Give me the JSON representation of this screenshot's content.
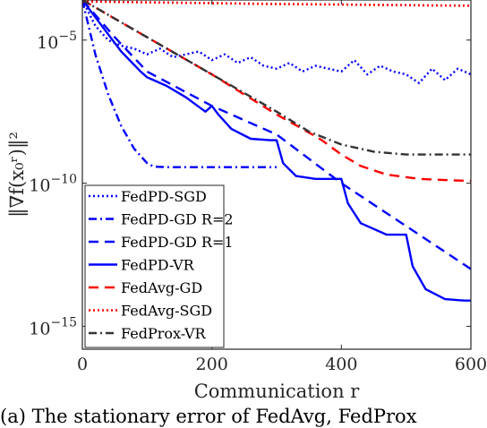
{
  "chart_data": {
    "type": "line",
    "title": "",
    "xlabel": "Communication r",
    "ylabel": "‖∇f(x₀ʳ)‖²",
    "xlim": [
      0,
      600
    ],
    "ylim_log10": [
      -15.8,
      -3.6
    ],
    "yscale": "log",
    "grid": false,
    "legend_position": "bottom-left",
    "x_ticks": [
      {
        "value": 0,
        "label": "0"
      },
      {
        "value": 200,
        "label": "200"
      },
      {
        "value": 400,
        "label": "400"
      },
      {
        "value": 600,
        "label": "600"
      }
    ],
    "y_ticks": [
      {
        "value": -5,
        "label": "10",
        "exp": "−5"
      },
      {
        "value": -10,
        "label": "10",
        "exp": "−10"
      },
      {
        "value": -15,
        "label": "10",
        "exp": "−15"
      }
    ],
    "series": [
      {
        "name": "FedPD-SGD",
        "color": "#0000ff",
        "dash": "2,3",
        "width": 2.4,
        "x": [
          0,
          20,
          40,
          60,
          80,
          100,
          120,
          140,
          160,
          180,
          200,
          220,
          240,
          260,
          280,
          300,
          320,
          340,
          360,
          380,
          400,
          420,
          440,
          460,
          480,
          500,
          520,
          540,
          560,
          580,
          600
        ],
        "y": [
          -3.6,
          -4.5,
          -5.0,
          -5.2,
          -5.3,
          -5.5,
          -5.3,
          -5.6,
          -5.5,
          -5.4,
          -5.7,
          -5.5,
          -5.8,
          -5.6,
          -5.9,
          -6.0,
          -5.8,
          -6.1,
          -5.9,
          -6.0,
          -6.1,
          -5.7,
          -6.2,
          -5.9,
          -6.1,
          -6.2,
          -6.5,
          -6.0,
          -6.4,
          -6.0,
          -6.2
        ]
      },
      {
        "name": "FedPD-GD R=2",
        "color": "#0000ff",
        "dash": "9,4,2,4",
        "width": 2.4,
        "x": [
          0,
          20,
          40,
          60,
          80,
          100,
          110,
          130,
          150,
          200,
          250,
          300
        ],
        "y": [
          -3.6,
          -5.5,
          -6.9,
          -8.0,
          -8.8,
          -9.3,
          -9.42,
          -9.44,
          -9.44,
          -9.44,
          -9.44,
          -9.44
        ]
      },
      {
        "name": "FedPD-GD R=1",
        "color": "#0000ff",
        "dash": "11,7",
        "width": 2.4,
        "x": [
          0,
          50,
          100,
          200,
          300,
          400,
          500,
          600
        ],
        "y": [
          -3.6,
          -4.9,
          -6.1,
          -7.3,
          -8.3,
          -10.0,
          -11.5,
          -13.0
        ]
      },
      {
        "name": "FedPD-VR",
        "color": "#0000ff",
        "dash": "",
        "width": 2.4,
        "x": [
          0,
          30,
          60,
          90,
          100,
          110,
          130,
          160,
          190,
          200,
          210,
          230,
          260,
          290,
          300,
          310,
          330,
          360,
          390,
          400,
          410,
          430,
          470,
          490,
          500,
          510,
          530,
          560,
          590,
          600
        ],
        "y": [
          -3.6,
          -4.5,
          -5.4,
          -6.1,
          -6.3,
          -6.4,
          -6.6,
          -7.0,
          -7.5,
          -7.3,
          -7.6,
          -8.1,
          -8.45,
          -8.5,
          -8.5,
          -9.3,
          -9.75,
          -9.85,
          -9.85,
          -9.85,
          -10.7,
          -11.4,
          -11.8,
          -11.8,
          -11.8,
          -12.9,
          -13.7,
          -14.05,
          -14.1,
          -14.1
        ]
      },
      {
        "name": "FedAvg-GD",
        "color": "#ff0000",
        "dash": "11,7",
        "width": 2.4,
        "x": [
          0,
          100,
          200,
          300,
          340,
          370,
          400,
          430,
          470,
          520,
          570,
          600
        ],
        "y": [
          -3.6,
          -4.9,
          -6.2,
          -7.6,
          -8.1,
          -8.5,
          -9.0,
          -9.4,
          -9.7,
          -9.85,
          -9.9,
          -9.92
        ]
      },
      {
        "name": "FedAvg-SGD",
        "color": "#ff0000",
        "dash": "2,3",
        "width": 2.6,
        "x": [
          0,
          100,
          200,
          300,
          400,
          500,
          600
        ],
        "y": [
          -3.65,
          -3.68,
          -3.71,
          -3.74,
          -3.76,
          -3.78,
          -3.8
        ]
      },
      {
        "name": "FedProx-VR",
        "color": "#333333",
        "dash": "9,4,2,4",
        "width": 2.4,
        "x": [
          0,
          100,
          200,
          300,
          350,
          400,
          450,
          500,
          550,
          600
        ],
        "y": [
          -3.6,
          -4.9,
          -6.2,
          -7.5,
          -8.2,
          -8.65,
          -8.9,
          -9.0,
          -9.0,
          -9.0
        ]
      }
    ]
  },
  "caption": "(a) The stationary error of FedAvg, FedProx"
}
